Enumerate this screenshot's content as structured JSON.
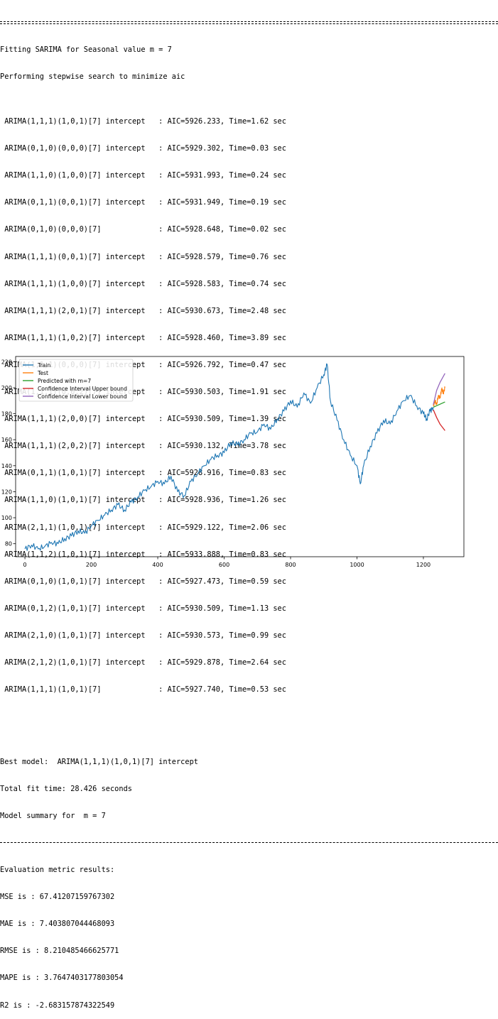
{
  "console": {
    "header": "Fitting SARIMA for Seasonal value m = 7",
    "search_line": "Performing stepwise search to minimize aic",
    "models": [
      " ARIMA(1,1,1)(1,0,1)[7] intercept   : AIC=5926.233, Time=1.62 sec",
      " ARIMA(0,1,0)(0,0,0)[7] intercept   : AIC=5929.302, Time=0.03 sec",
      " ARIMA(1,1,0)(1,0,0)[7] intercept   : AIC=5931.993, Time=0.24 sec",
      " ARIMA(0,1,1)(0,0,1)[7] intercept   : AIC=5931.949, Time=0.19 sec",
      " ARIMA(0,1,0)(0,0,0)[7]             : AIC=5928.648, Time=0.02 sec",
      " ARIMA(1,1,1)(0,0,1)[7] intercept   : AIC=5928.579, Time=0.76 sec",
      " ARIMA(1,1,1)(1,0,0)[7] intercept   : AIC=5928.583, Time=0.74 sec",
      " ARIMA(1,1,1)(2,0,1)[7] intercept   : AIC=5930.673, Time=2.48 sec",
      " ARIMA(1,1,1)(1,0,2)[7] intercept   : AIC=5928.460, Time=3.89 sec",
      " ARIMA(1,1,1)(0,0,0)[7] intercept   : AIC=5926.792, Time=0.47 sec",
      " ARIMA(1,1,1)(0,0,2)[7] intercept   : AIC=5930.503, Time=1.91 sec",
      " ARIMA(1,1,1)(2,0,0)[7] intercept   : AIC=5930.509, Time=1.39 sec",
      " ARIMA(1,1,1)(2,0,2)[7] intercept   : AIC=5930.132, Time=3.78 sec",
      " ARIMA(0,1,1)(1,0,1)[7] intercept   : AIC=5928.916, Time=0.83 sec",
      " ARIMA(1,1,0)(1,0,1)[7] intercept   : AIC=5928.936, Time=1.26 sec",
      " ARIMA(2,1,1)(1,0,1)[7] intercept   : AIC=5929.122, Time=2.06 sec",
      " ARIMA(1,1,2)(1,0,1)[7] intercept   : AIC=5933.888, Time=0.83 sec",
      " ARIMA(0,1,0)(1,0,1)[7] intercept   : AIC=5927.473, Time=0.59 sec",
      " ARIMA(0,1,2)(1,0,1)[7] intercept   : AIC=5930.509, Time=1.13 sec",
      " ARIMA(2,1,0)(1,0,1)[7] intercept   : AIC=5930.573, Time=0.99 sec",
      " ARIMA(2,1,2)(1,0,1)[7] intercept   : AIC=5929.878, Time=2.64 sec",
      " ARIMA(1,1,1)(1,0,1)[7]             : AIC=5927.740, Time=0.53 sec"
    ],
    "best_model": "Best model:  ARIMA(1,1,1)(1,0,1)[7] intercept",
    "total_fit_time": "Total fit time: 28.426 seconds",
    "model_summary": "Model summary for  m = 7",
    "metrics_heading": "Evaluation metric results:",
    "metrics": [
      "MSE is : 67.41207159767302",
      "MAE is : 7.403807044468093",
      "RMSE is : 8.210485466625771",
      "MAPE is : 3.7647403177803054",
      "R2 is : -2.683157874322549"
    ]
  },
  "chart_data": {
    "type": "line",
    "title": "",
    "xlabel": "",
    "ylabel": "",
    "xlim": [
      -28,
      1322
    ],
    "ylim": [
      70,
      224
    ],
    "x_ticks": [
      "0",
      "200",
      "400",
      "600",
      "800",
      "1000",
      "1200"
    ],
    "y_ticks": [
      "80",
      "100",
      "120",
      "140",
      "160",
      "180",
      "200",
      "220"
    ],
    "x_tick_values": [
      0,
      200,
      400,
      600,
      800,
      1000,
      1200
    ],
    "y_tick_values": [
      80,
      100,
      120,
      140,
      160,
      180,
      200,
      220
    ],
    "grid": false,
    "legend_position": "upper-left",
    "colors": {
      "train": "#1f77b4",
      "test": "#ff7f0e",
      "predicted": "#2ca02c",
      "upper": "#d62728",
      "lower": "#9467bd"
    },
    "series": [
      {
        "name": "Train",
        "x": [
          0,
          20,
          40,
          60,
          80,
          100,
          120,
          140,
          160,
          180,
          200,
          220,
          240,
          260,
          280,
          300,
          320,
          340,
          360,
          380,
          400,
          420,
          440,
          460,
          480,
          500,
          520,
          540,
          560,
          580,
          600,
          620,
          640,
          660,
          680,
          700,
          720,
          740,
          760,
          780,
          800,
          820,
          840,
          860,
          880,
          900,
          910,
          920,
          940,
          960,
          980,
          1000,
          1010,
          1020,
          1040,
          1060,
          1080,
          1100,
          1120,
          1140,
          1160,
          1180,
          1200,
          1210,
          1220,
          1230
        ],
        "y": [
          76,
          79,
          76,
          78,
          81,
          80,
          84,
          86,
          90,
          88,
          94,
          98,
          102,
          106,
          110,
          106,
          112,
          116,
          121,
          124,
          128,
          126,
          132,
          120,
          117,
          128,
          134,
          140,
          145,
          148,
          150,
          158,
          156,
          160,
          165,
          166,
          172,
          168,
          176,
          182,
          190,
          185,
          196,
          188,
          200,
          210,
          218,
          190,
          175,
          160,
          148,
          140,
          126,
          140,
          155,
          165,
          175,
          172,
          182,
          190,
          194,
          186,
          180,
          176,
          182,
          185
        ]
      },
      {
        "name": "Test",
        "x": [
          1230,
          1235,
          1240,
          1245,
          1250,
          1255,
          1260,
          1265
        ],
        "y": [
          186,
          190,
          187,
          194,
          192,
          199,
          196,
          200
        ]
      },
      {
        "name": "Predicted with m=7",
        "x": [
          1230,
          1265
        ],
        "y": [
          185,
          189
        ]
      },
      {
        "name": "Confidence Interval Upper bound",
        "x": [
          1230,
          1240,
          1250,
          1265
        ],
        "y": [
          183,
          177,
          172,
          167
        ]
      },
      {
        "name": "Confidence Interval Lower bound",
        "x": [
          1230,
          1240,
          1250,
          1265
        ],
        "y": [
          187,
          198,
          204,
          211
        ]
      }
    ]
  }
}
